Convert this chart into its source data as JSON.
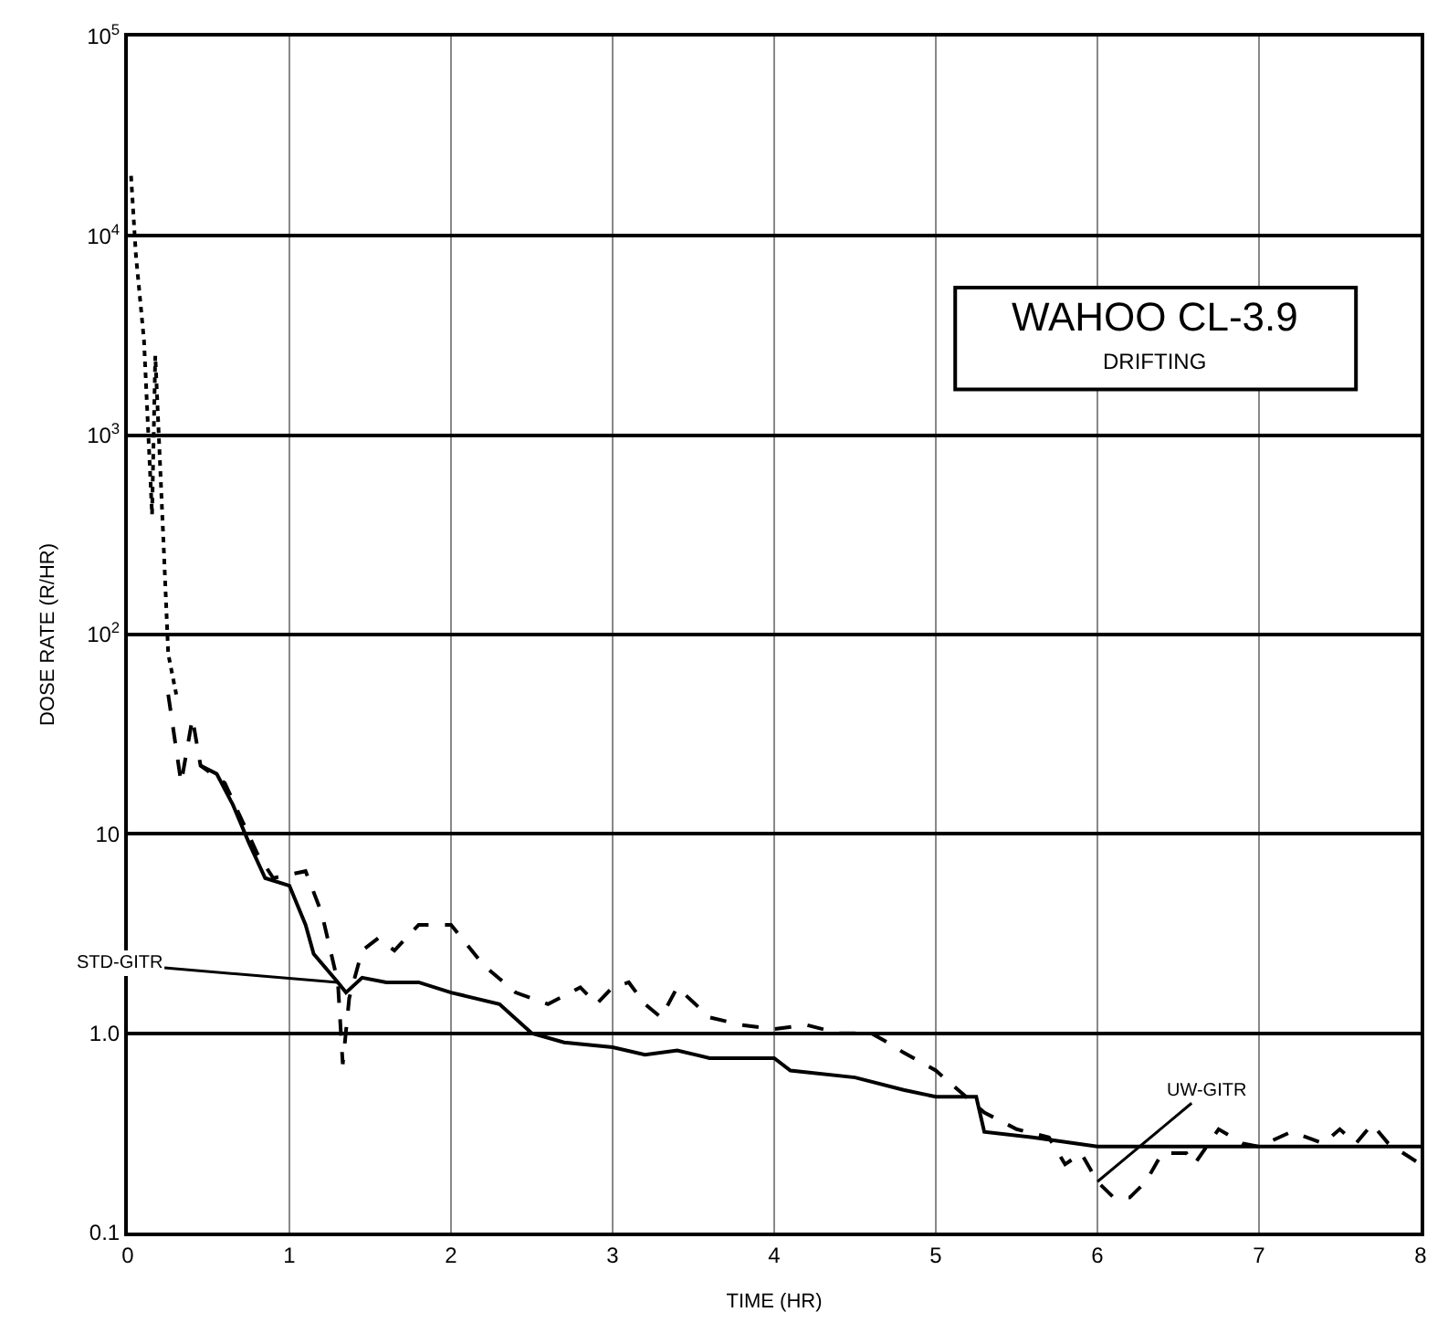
{
  "chart_data": {
    "type": "line",
    "xlabel": "TIME (HR)",
    "ylabel": "DOSE RATE (R/HR)",
    "annotations": [
      "WAHOO CL-3.9",
      "DRIFTING"
    ],
    "log": "y",
    "grid": true,
    "legend": false,
    "marker": "none",
    "xlim": [
      0,
      8
    ],
    "xticks": [
      0,
      1,
      2,
      3,
      4,
      5,
      6,
      7,
      8
    ],
    "ylim": [
      0.1,
      100000
    ],
    "yticks": [
      {
        "value": 0.1,
        "label": "0.1"
      },
      {
        "value": 1,
        "label": "1.0"
      },
      10,
      {
        "value": 100,
        "label": "10$^{2}$"
      },
      {
        "value": 1000,
        "label": "10$^{3}$"
      },
      {
        "value": 10000,
        "label": "10$^{4}$"
      },
      {
        "value": 100000,
        "label": "10$^{5}$"
      }
    ],
    "series": [
      {
        "color": "#000000",
        "line_style": "dotted",
        "x": [
          0.02,
          0.05,
          0.1,
          0.15,
          0.17,
          0.2,
          0.22,
          0.25,
          0.3
        ],
        "values": [
          20000,
          8000,
          3000,
          400,
          2500,
          700,
          300,
          80,
          50
        ]
      },
      {
        "name": "STD-GITR",
        "color": "#000000",
        "line_style": "solid",
        "x": [
          0.45,
          0.55,
          0.65,
          0.75,
          0.85,
          1.0,
          1.1,
          1.15,
          1.3,
          1.35,
          1.45,
          1.6,
          1.8,
          2.0,
          2.3,
          2.5,
          2.7,
          3.0,
          3.2,
          3.4,
          3.6,
          4.0,
          4.1,
          4.5,
          4.8,
          5.0,
          5.25,
          5.3,
          5.6,
          6.0,
          7.0,
          8.0
        ],
        "values": [
          22,
          20,
          14,
          9,
          6,
          5.5,
          3.5,
          2.5,
          1.8,
          1.6,
          1.9,
          1.8,
          1.8,
          1.6,
          1.4,
          1.0,
          0.9,
          0.85,
          0.78,
          0.82,
          0.75,
          0.75,
          0.65,
          0.6,
          0.52,
          0.48,
          0.48,
          0.32,
          0.3,
          0.27,
          0.27,
          0.27
        ]
      },
      {
        "name": "UW-GITR",
        "color": "#000000",
        "line_style": "dashed",
        "x": [
          0.25,
          0.33,
          0.4,
          0.45,
          0.6,
          0.7,
          0.8,
          0.9,
          1.1,
          1.2,
          1.3,
          1.33,
          1.37,
          1.45,
          1.55,
          1.65,
          1.8,
          2.0,
          2.2,
          2.4,
          2.6,
          2.8,
          2.9,
          3.0,
          3.1,
          3.2,
          3.3,
          3.4,
          3.6,
          3.8,
          4.0,
          4.2,
          4.4,
          4.6,
          4.7,
          4.8,
          5.0,
          5.3,
          5.5,
          5.7,
          5.8,
          5.9,
          6.0,
          6.1,
          6.2,
          6.3,
          6.4,
          6.55,
          6.6,
          6.75,
          6.9,
          7.0,
          7.2,
          7.4,
          7.5,
          7.6,
          7.7,
          7.8,
          8.0
        ],
        "values": [
          50,
          18,
          38,
          22,
          18,
          12,
          8,
          6,
          6.5,
          4,
          1.8,
          0.7,
          1.5,
          2.6,
          3,
          2.6,
          3.5,
          3.5,
          2.2,
          1.6,
          1.4,
          1.7,
          1.4,
          1.7,
          1.8,
          1.4,
          1.2,
          1.7,
          1.2,
          1.1,
          1.05,
          1.1,
          1.0,
          1.0,
          0.9,
          0.8,
          0.65,
          0.4,
          0.33,
          0.3,
          0.22,
          0.25,
          0.18,
          0.15,
          0.15,
          0.18,
          0.25,
          0.25,
          0.22,
          0.33,
          0.28,
          0.27,
          0.32,
          0.28,
          0.33,
          0.28,
          0.35,
          0.28,
          0.22
        ]
      }
    ]
  }
}
